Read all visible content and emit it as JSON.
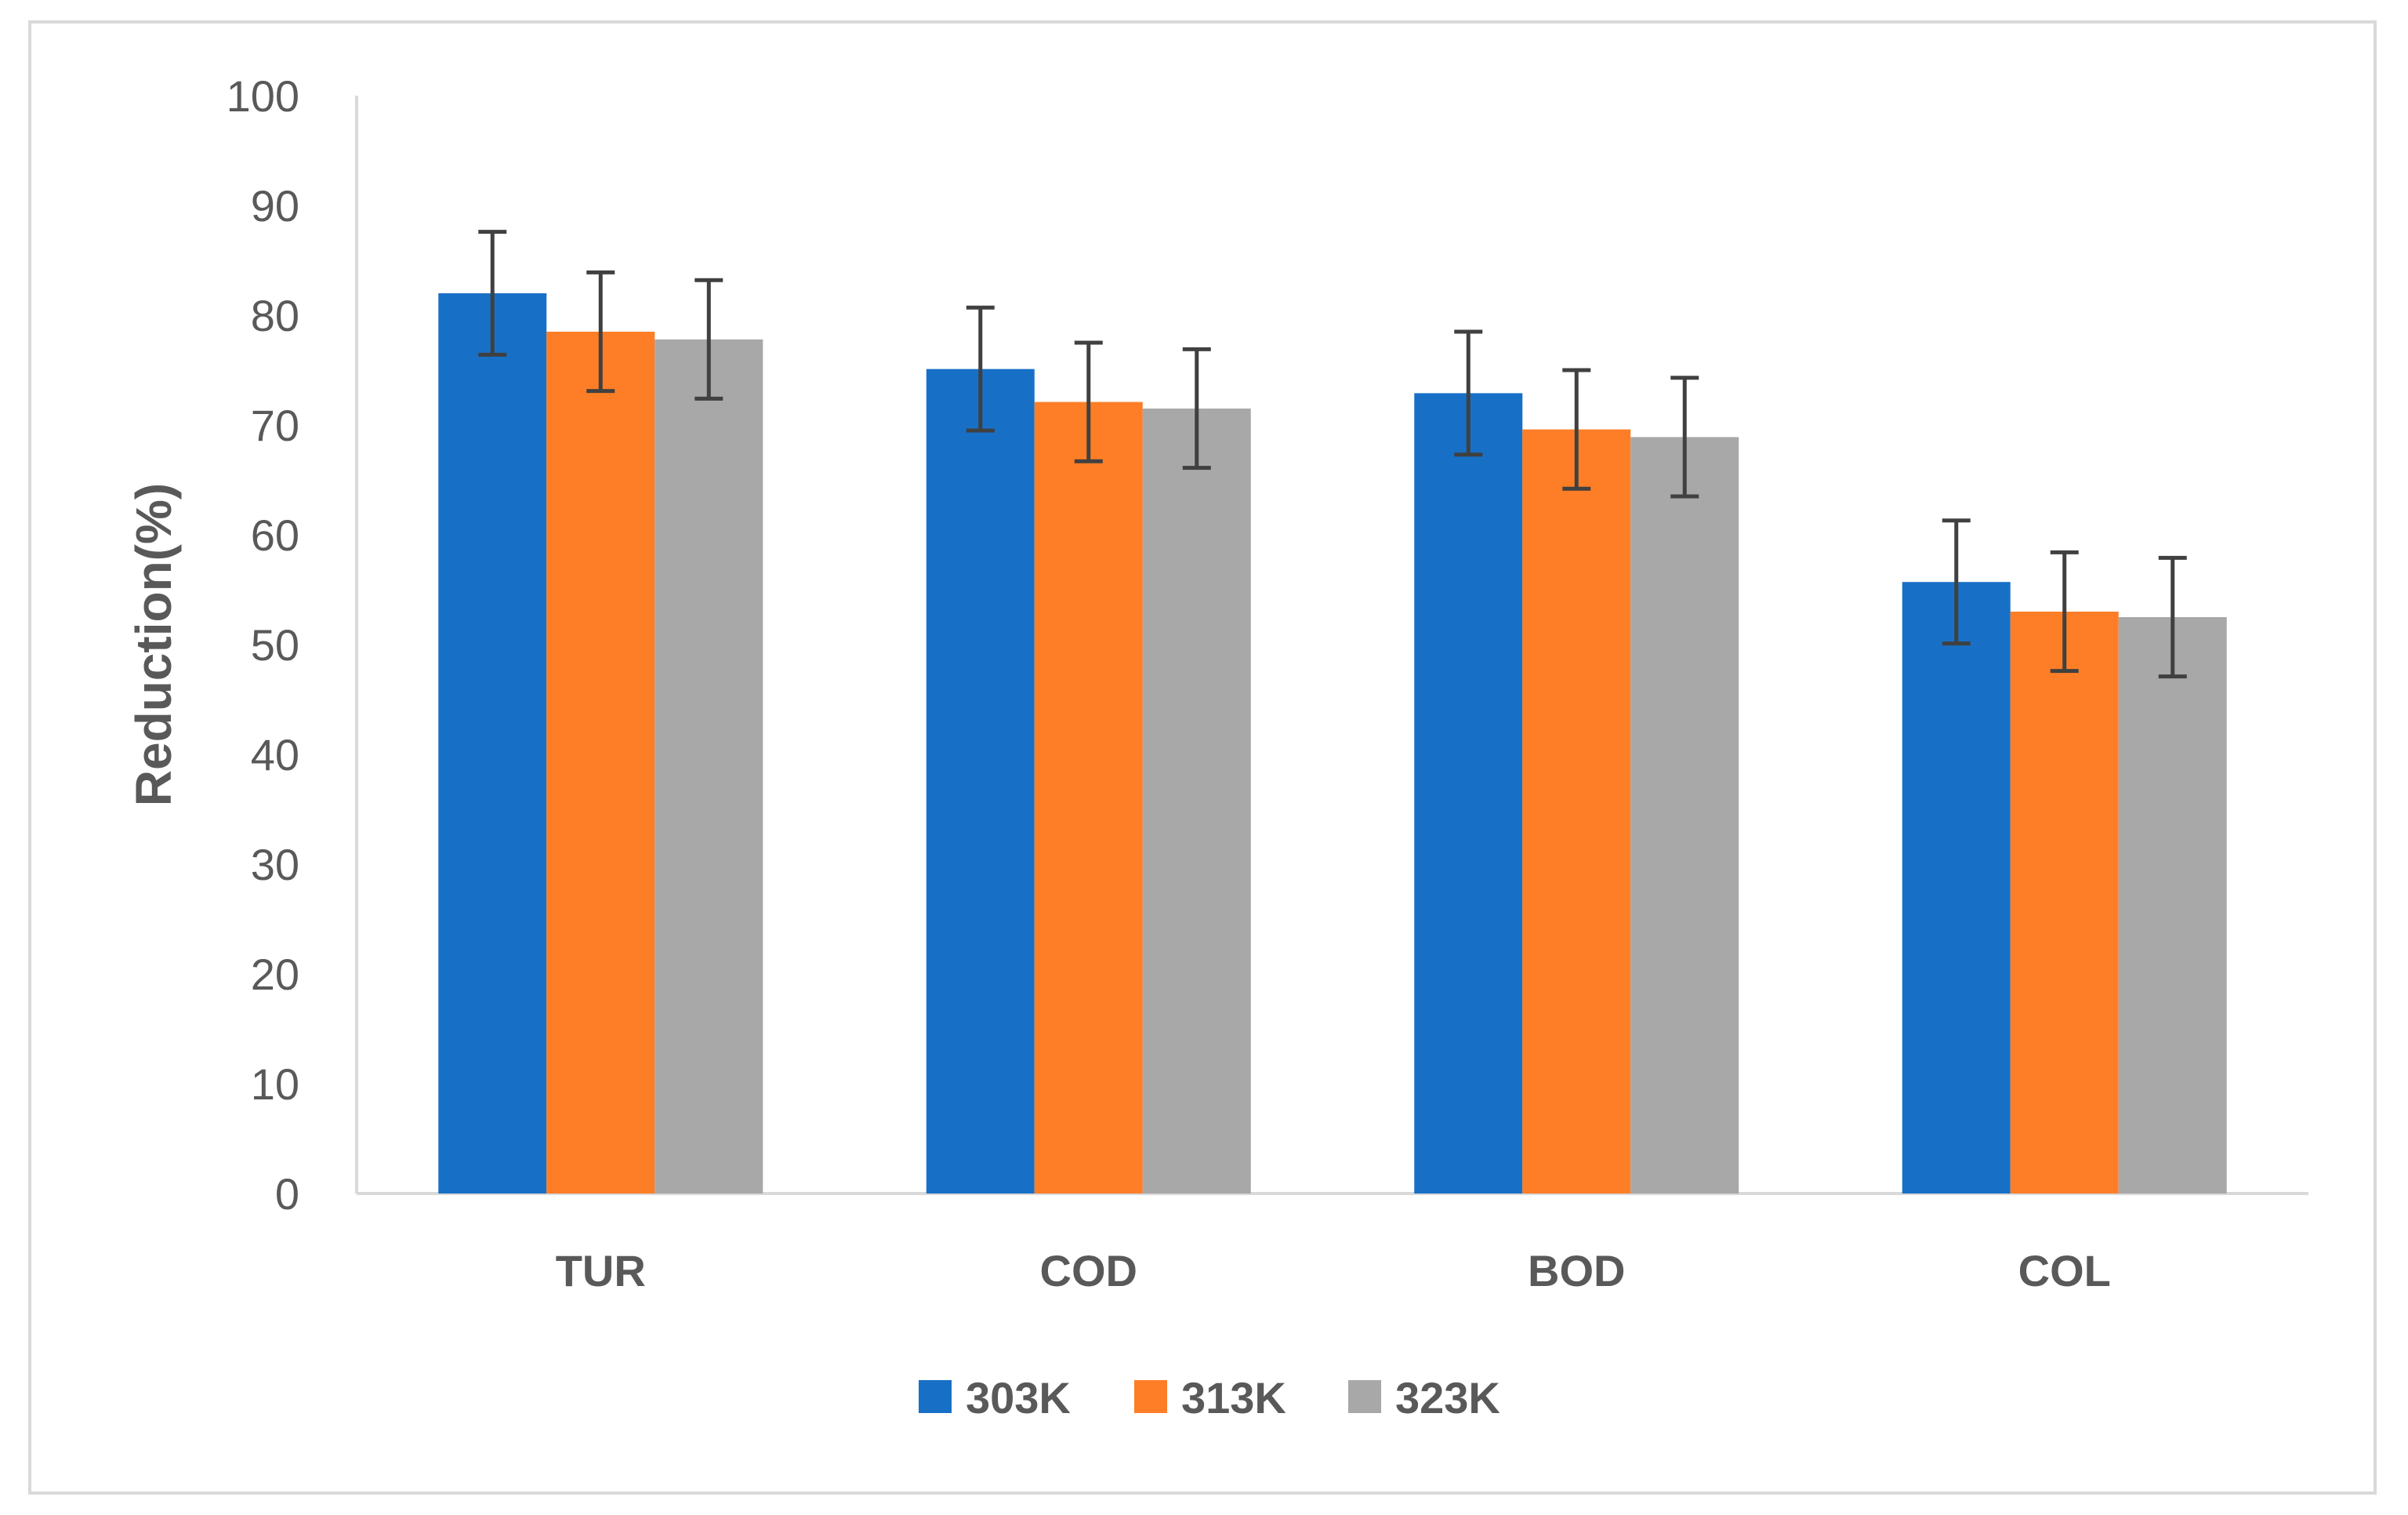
{
  "chart_data": {
    "type": "bar",
    "title": "",
    "xlabel": "",
    "ylabel": "Reduction(%)",
    "ylim": [
      0,
      100
    ],
    "yticks": [
      "0",
      "10",
      "20",
      "30",
      "40",
      "50",
      "60",
      "70",
      "80",
      "90",
      "100"
    ],
    "grid": false,
    "legend_position": "bottom",
    "categories": [
      "TUR",
      "COD",
      "BOD",
      "COL"
    ],
    "series": [
      {
        "name": "303K",
        "color": "#1870c6",
        "values": [
          82.0,
          75.1,
          72.9,
          55.7
        ],
        "errors": [
          5.6,
          5.6,
          5.6,
          5.6
        ]
      },
      {
        "name": "313K",
        "color": "#fd7e26",
        "values": [
          78.5,
          72.1,
          69.6,
          53.0
        ],
        "errors": [
          5.4,
          5.4,
          5.4,
          5.4
        ]
      },
      {
        "name": "323K",
        "color": "#a8a8a8",
        "values": [
          77.8,
          71.5,
          68.9,
          52.5
        ],
        "errors": [
          5.4,
          5.4,
          5.4,
          5.4
        ]
      }
    ],
    "error_bar_color": "#404040",
    "axis_color": "#d9d9d9"
  }
}
